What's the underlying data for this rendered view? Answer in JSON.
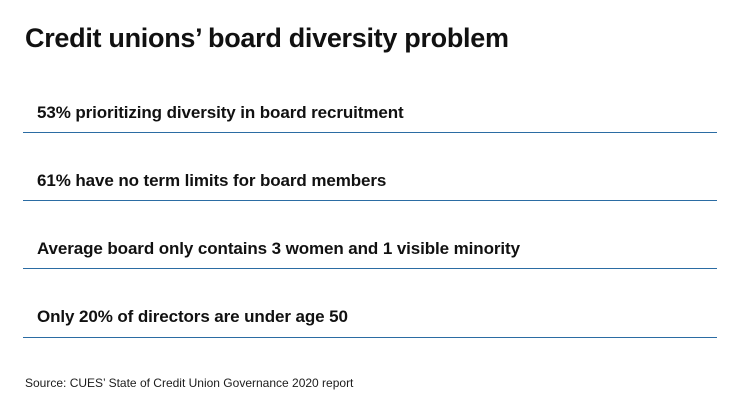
{
  "header": {
    "title": "Credit unions’ board diversity problem"
  },
  "stats": {
    "items": [
      {
        "text": "53% prioritizing diversity in board recruitment"
      },
      {
        "text": "61% have no term limits for board members"
      },
      {
        "text": "Average board only contains 3 women and 1 visible minority"
      },
      {
        "text": "Only 20% of directors are under age 50"
      }
    ]
  },
  "footer": {
    "source": "Source: CUES’ State of Credit Union Governance 2020 report"
  },
  "colors": {
    "accent": "#2b6ca3",
    "text": "#111111",
    "background": "#ffffff"
  }
}
